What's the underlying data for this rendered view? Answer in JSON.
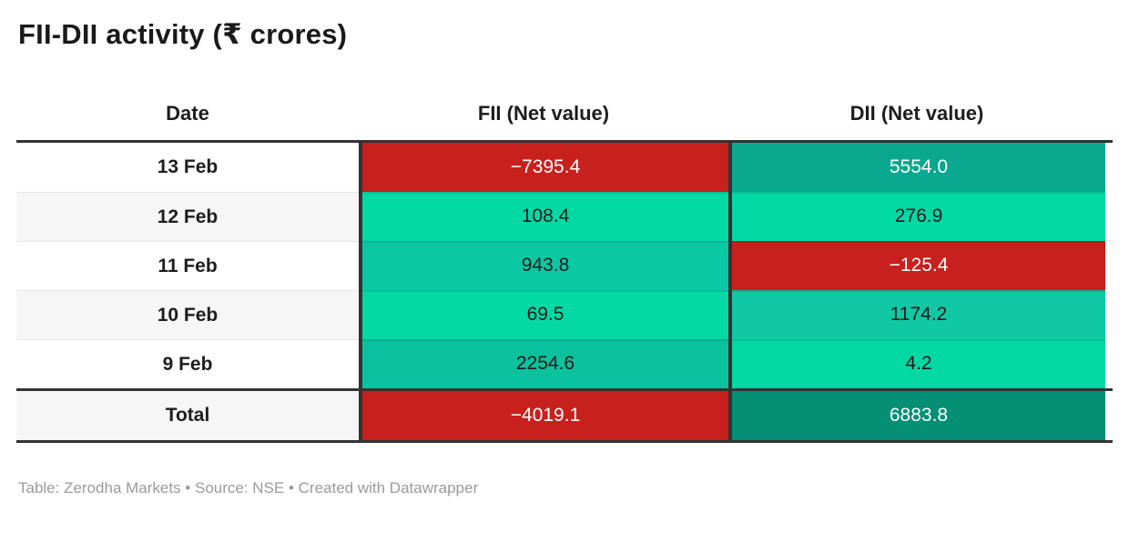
{
  "title": "FII-DII activity (₹ crores)",
  "footer": "Table: Zerodha Markets • Source: NSE • Created with Datawrapper",
  "colors": {
    "negative_red": "#c7201d",
    "positive_bright": "#03d9a5",
    "positive_mid": "#0cc6a1",
    "positive_deep": "#0aa88e",
    "positive_darkest": "#058f74",
    "border_dark": "#333333",
    "zebra_gray": "#f6f6f6",
    "footer_gray": "#9a9a9a"
  },
  "table": {
    "columns": {
      "date": "Date",
      "fii": "FII (Net value)",
      "dii": "DII (Net value)"
    },
    "rows": [
      {
        "date": "13 Feb",
        "row_bg": "#ffffff",
        "fii": {
          "text": "−7395.4",
          "bg": "#c7201d",
          "fg": "#ffffff"
        },
        "dii": {
          "text": "5554.0",
          "bg": "#0aa88e",
          "fg": "#ffffff"
        }
      },
      {
        "date": "12 Feb",
        "row_bg": "#f6f6f6",
        "fii": {
          "text": "108.4",
          "bg": "#03d9a4",
          "fg": "#1a1a1a"
        },
        "dii": {
          "text": "276.9",
          "bg": "#03d9a4",
          "fg": "#1a1a1a"
        }
      },
      {
        "date": "11 Feb",
        "row_bg": "#ffffff",
        "fii": {
          "text": "943.8",
          "bg": "#0ac8a3",
          "fg": "#1a1a1a"
        },
        "dii": {
          "text": "−125.4",
          "bg": "#c7201d",
          "fg": "#ffffff"
        }
      },
      {
        "date": "10 Feb",
        "row_bg": "#f6f6f6",
        "fii": {
          "text": "69.5",
          "bg": "#03d9a5",
          "fg": "#1a1a1a"
        },
        "dii": {
          "text": "1174.2",
          "bg": "#11c8a5",
          "fg": "#1a1a1a"
        }
      },
      {
        "date": "9 Feb",
        "row_bg": "#ffffff",
        "fii": {
          "text": "2254.6",
          "bg": "#0bc29e",
          "fg": "#1a1a1a"
        },
        "dii": {
          "text": "4.2",
          "bg": "#03d9a5",
          "fg": "#1a1a1a"
        }
      }
    ],
    "total": {
      "label": "Total",
      "row_bg": "#f6f6f6",
      "fii": {
        "text": "−4019.1",
        "bg": "#c7201d",
        "fg": "#ffffff"
      },
      "dii": {
        "text": "6883.8",
        "bg": "#058f74",
        "fg": "#ffffff"
      }
    }
  },
  "chart_data": {
    "type": "table",
    "title": "FII-DII activity (₹ crores)",
    "columns": [
      "Date",
      "FII (Net value)",
      "DII (Net value)"
    ],
    "rows": [
      [
        "13 Feb",
        -7395.4,
        5554.0
      ],
      [
        "12 Feb",
        108.4,
        276.9
      ],
      [
        "11 Feb",
        943.8,
        -125.4
      ],
      [
        "10 Feb",
        69.5,
        1174.2
      ],
      [
        "9 Feb",
        2254.6,
        4.2
      ]
    ],
    "total_row": [
      "Total",
      -4019.1,
      6883.8
    ],
    "notes": "heatmap-colored cells: red for negative values, green scale for positive (darker green = larger value); date column zebra-striped",
    "source_line": "Table: Zerodha Markets • Source: NSE • Created with Datawrapper"
  }
}
